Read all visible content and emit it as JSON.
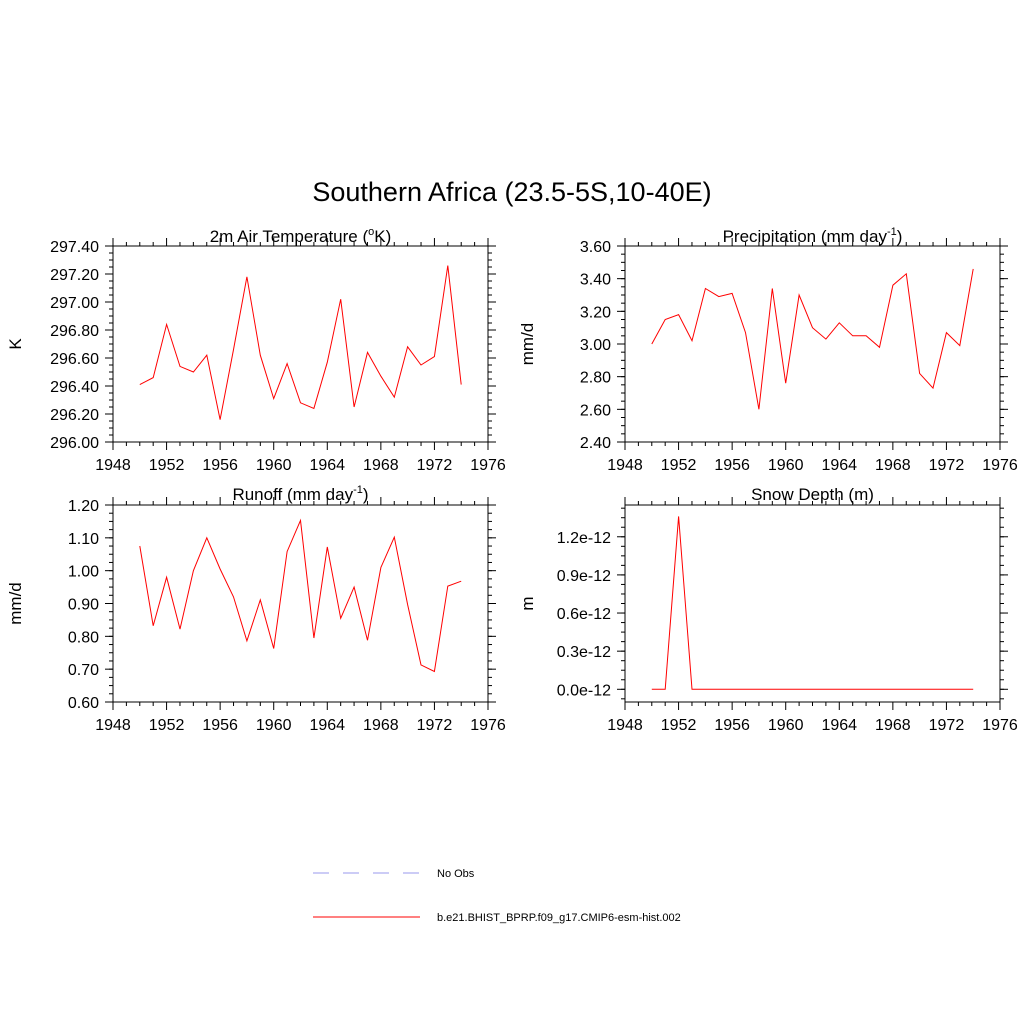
{
  "figure": {
    "title": "Southern Africa (23.5-5S,10-40E)"
  },
  "legend": {
    "items": [
      {
        "label": "No Obs",
        "color": "#9999ee",
        "dashed": true
      },
      {
        "label": "b.e21.BHIST_BPRP.f09_g17.CMIP6-esm-hist.002",
        "color": "#ff0000",
        "dashed": false
      }
    ]
  },
  "chart_data": [
    {
      "type": "line",
      "title": "2m Air Temperature (",
      "title_sup": "o",
      "title_post": "K)",
      "ylabel": "K",
      "xlim": [
        1948,
        1976
      ],
      "xticks": [
        "1948",
        "1952",
        "1956",
        "1960",
        "1964",
        "1968",
        "1972",
        "1976"
      ],
      "ylim": [
        296.0,
        297.4
      ],
      "yticks": [
        "296.00",
        "296.20",
        "296.40",
        "296.60",
        "296.80",
        "297.00",
        "297.20",
        "297.40"
      ],
      "series": [
        {
          "color": "#ff0000",
          "x": [
            1950,
            1951,
            1952,
            1953,
            1954,
            1955,
            1956,
            1957,
            1958,
            1959,
            1960,
            1961,
            1962,
            1963,
            1964,
            1965,
            1966,
            1967,
            1968,
            1969,
            1970,
            1971,
            1972,
            1973,
            1974
          ],
          "values": [
            296.41,
            296.46,
            296.84,
            296.54,
            296.5,
            296.62,
            296.16,
            296.66,
            297.18,
            296.62,
            296.31,
            296.56,
            296.28,
            296.24,
            296.57,
            297.02,
            296.25,
            296.64,
            296.47,
            296.32,
            296.68,
            296.55,
            296.61,
            297.26,
            296.41
          ]
        }
      ]
    },
    {
      "type": "line",
      "title": "Precipitation (mm day",
      "title_sup": "-1",
      "title_post": ")",
      "ylabel": "mm/d",
      "xlim": [
        1948,
        1976
      ],
      "xticks": [
        "1948",
        "1952",
        "1956",
        "1960",
        "1964",
        "1968",
        "1972",
        "1976"
      ],
      "ylim": [
        2.4,
        3.6
      ],
      "yticks": [
        "2.40",
        "2.60",
        "2.80",
        "3.00",
        "3.20",
        "3.40",
        "3.60"
      ],
      "series": [
        {
          "color": "#ff0000",
          "x": [
            1950,
            1951,
            1952,
            1953,
            1954,
            1955,
            1956,
            1957,
            1958,
            1959,
            1960,
            1961,
            1962,
            1963,
            1964,
            1965,
            1966,
            1967,
            1968,
            1969,
            1970,
            1971,
            1972,
            1973,
            1974
          ],
          "values": [
            3.0,
            3.15,
            3.18,
            3.02,
            3.34,
            3.29,
            3.31,
            3.07,
            2.6,
            3.34,
            2.76,
            3.3,
            3.1,
            3.03,
            3.13,
            3.05,
            3.05,
            2.98,
            3.36,
            3.43,
            2.82,
            2.73,
            3.07,
            2.99,
            3.46
          ]
        }
      ]
    },
    {
      "type": "line",
      "title": "Runoff (mm day",
      "title_sup": "-1",
      "title_post": ")",
      "ylabel": "mm/d",
      "xlim": [
        1948,
        1976
      ],
      "xticks": [
        "1948",
        "1952",
        "1956",
        "1960",
        "1964",
        "1968",
        "1972",
        "1976"
      ],
      "ylim": [
        0.6,
        1.2
      ],
      "yticks": [
        "0.60",
        "0.70",
        "0.80",
        "0.90",
        "1.00",
        "1.10",
        "1.20"
      ],
      "series": [
        {
          "color": "#ff0000",
          "x": [
            1950,
            1951,
            1952,
            1953,
            1954,
            1955,
            1956,
            1957,
            1958,
            1959,
            1960,
            1961,
            1962,
            1963,
            1964,
            1965,
            1966,
            1967,
            1968,
            1969,
            1970,
            1971,
            1972,
            1973,
            1974
          ],
          "values": [
            1.075,
            0.832,
            0.98,
            0.822,
            1.0,
            1.1,
            1.005,
            0.92,
            0.786,
            0.911,
            0.763,
            1.058,
            1.153,
            0.795,
            1.072,
            0.855,
            0.95,
            0.788,
            1.01,
            1.102,
            0.897,
            0.713,
            0.693,
            0.953,
            0.968
          ]
        }
      ]
    },
    {
      "type": "line",
      "title": "Snow Depth (m)",
      "title_sup": "",
      "title_post": "",
      "ylabel": "m",
      "xlim": [
        1948,
        1976
      ],
      "xticks": [
        "1948",
        "1952",
        "1956",
        "1960",
        "1964",
        "1968",
        "1972",
        "1976"
      ],
      "ylim": [
        -1e-13,
        1.45e-12
      ],
      "yticks": [
        "0.0e-12",
        "0.3e-12",
        "0.6e-12",
        "0.9e-12",
        "1.2e-12"
      ],
      "ytick_values": [
        0,
        3e-13,
        6e-13,
        9e-13,
        1.2e-12
      ],
      "series": [
        {
          "color": "#ff0000",
          "x": [
            1950,
            1951,
            1952,
            1953,
            1954,
            1955,
            1956,
            1957,
            1958,
            1959,
            1960,
            1961,
            1962,
            1963,
            1964,
            1965,
            1966,
            1967,
            1968,
            1969,
            1970,
            1971,
            1972,
            1973,
            1974
          ],
          "values": [
            0,
            0,
            1.36e-12,
            0,
            0,
            0,
            0,
            0,
            0,
            0,
            0,
            0,
            0,
            0,
            0,
            0,
            0,
            0,
            0,
            0,
            0,
            0,
            0,
            0,
            0
          ]
        }
      ]
    }
  ]
}
